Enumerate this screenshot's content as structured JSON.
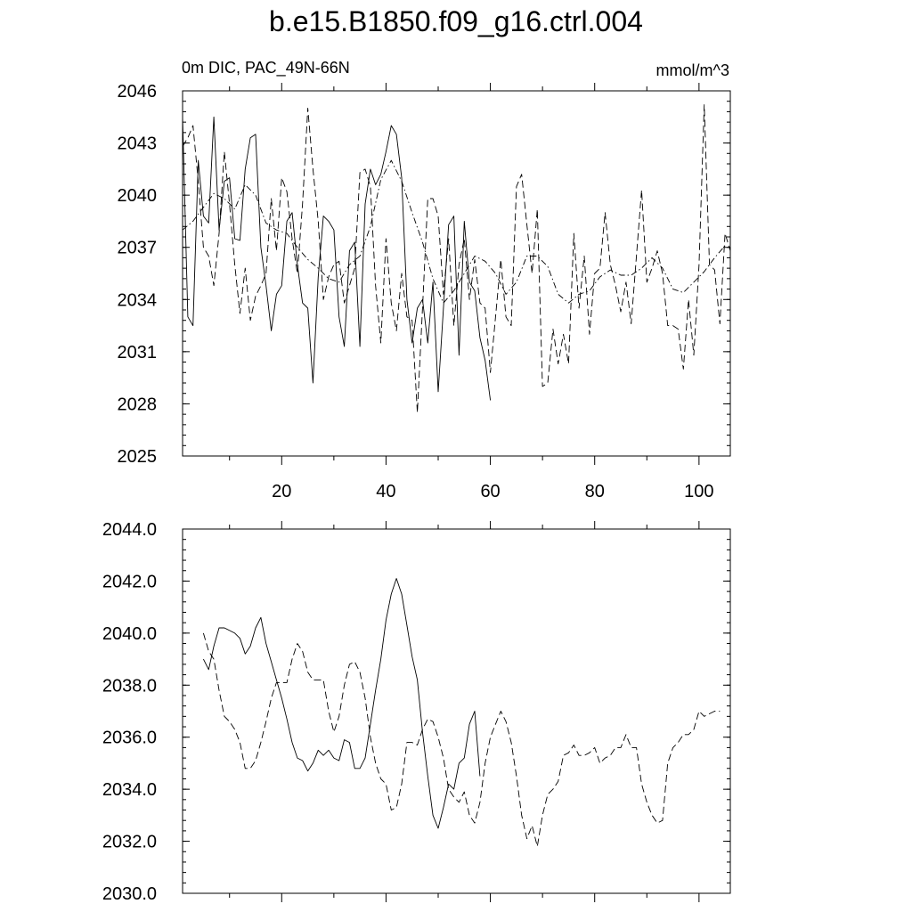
{
  "title": "b.e15.B1850.f09_g16.ctrl.004",
  "left_label": "0m DIC, PAC_49N-66N",
  "right_label": "mmol/m^3",
  "colors": {
    "line": "#000000",
    "background": "#ffffff"
  },
  "chart_data": [
    {
      "type": "line",
      "xlim": [
        1,
        106
      ],
      "ylim": [
        2025,
        2046
      ],
      "yticks": [
        2025,
        2028,
        2031,
        2034,
        2037,
        2040,
        2043,
        2046
      ],
      "ytick_labels": [
        "2025",
        "2028",
        "2031",
        "2034",
        "2037",
        "2040",
        "2043",
        "2046"
      ],
      "xticks": [
        20,
        40,
        60,
        80,
        100
      ],
      "xtick_labels": [
        "20",
        "40",
        "60",
        "80",
        "100"
      ],
      "grid": false,
      "series": [
        {
          "style": "solid",
          "x": [
            1,
            2,
            3,
            4,
            5,
            6,
            7,
            8,
            9,
            10,
            11,
            12,
            13,
            14,
            15,
            16,
            17,
            18,
            19,
            20,
            21,
            22,
            23,
            24,
            25,
            26,
            27,
            28,
            29,
            30,
            31,
            32,
            33,
            34,
            35,
            36,
            37,
            38,
            39,
            40,
            41,
            42,
            43,
            44,
            45,
            46,
            47,
            48,
            49,
            50,
            51,
            52,
            53,
            54,
            55,
            56,
            57,
            58,
            59,
            60
          ],
          "y": [
            2044.5,
            2033.0,
            2032.5,
            2042.0,
            2038.8,
            2038.4,
            2044.5,
            2038.0,
            2040.8,
            2041.0,
            2037.5,
            2037.4,
            2041.5,
            2043.3,
            2043.5,
            2037.0,
            2034.8,
            2032.2,
            2034.3,
            2034.8,
            2038.5,
            2039.0,
            2036.0,
            2033.8,
            2033.5,
            2029.2,
            2035.3,
            2038.8,
            2038.5,
            2038.0,
            2033.0,
            2031.3,
            2036.8,
            2037.3,
            2031.3,
            2039.5,
            2041.5,
            2040.6,
            2041.2,
            2042.5,
            2044.0,
            2043.5,
            2041.0,
            2034.0,
            2031.5,
            2033.5,
            2034.0,
            2031.5,
            2035.0,
            2028.7,
            2033.5,
            2038.3,
            2038.8,
            2030.8,
            2038.5,
            2035.0,
            2034.5,
            2031.8,
            2030.5,
            2028.2
          ]
        },
        {
          "style": "dashed",
          "x": [
            1,
            2,
            3,
            4,
            5,
            6,
            7,
            8,
            9,
            10,
            11,
            12,
            13,
            14,
            15,
            16,
            17,
            18,
            19,
            20,
            21,
            22,
            23,
            24,
            25,
            26,
            27,
            28,
            29,
            30,
            31,
            32,
            33,
            34,
            35,
            36,
            37,
            38,
            39,
            40,
            41,
            42,
            43,
            44,
            45,
            46,
            47,
            48,
            49,
            50,
            51,
            52,
            53,
            54,
            55,
            56,
            57,
            58,
            59,
            60,
            61,
            62,
            63,
            64,
            65,
            66,
            67,
            68,
            69,
            70,
            71,
            72,
            73,
            74,
            75,
            76,
            77,
            78,
            79,
            80,
            81,
            82,
            83,
            84,
            85,
            86,
            87,
            88,
            89,
            90,
            91,
            92,
            93,
            94,
            95,
            96,
            97,
            98,
            99,
            100,
            101,
            102,
            103,
            104,
            105,
            106
          ],
          "y": [
            2042.8,
            2043.3,
            2044.0,
            2040.8,
            2037.0,
            2036.5,
            2034.8,
            2037.8,
            2042.5,
            2039.5,
            2036.0,
            2033.2,
            2035.8,
            2032.8,
            2034.2,
            2034.8,
            2035.5,
            2039.8,
            2036.8,
            2041.0,
            2040.2,
            2037.5,
            2035.5,
            2039.5,
            2045.0,
            2041.5,
            2038.5,
            2034.0,
            2035.3,
            2036.0,
            2036.2,
            2033.8,
            2034.8,
            2035.8,
            2041.3,
            2041.5,
            2040.5,
            2034.8,
            2031.5,
            2037.5,
            2033.8,
            2032.2,
            2035.5,
            2033.0,
            2032.8,
            2027.5,
            2033.5,
            2039.8,
            2039.8,
            2038.8,
            2034.3,
            2037.5,
            2032.5,
            2036.0,
            2037.5,
            2034.0,
            2036.3,
            2033.8,
            2033.5,
            2029.8,
            2033.0,
            2036.3,
            2033.0,
            2032.5,
            2040.5,
            2041.2,
            2038.3,
            2035.5,
            2039.2,
            2029.0,
            2029.2,
            2032.3,
            2030.3,
            2032.0,
            2030.3,
            2037.8,
            2033.5,
            2036.5,
            2032.0,
            2035.5,
            2035.8,
            2039.0,
            2036.0,
            2034.8,
            2033.3,
            2035.0,
            2032.6,
            2036.5,
            2040.3,
            2035.0,
            2035.8,
            2036.8,
            2035.5,
            2032.5,
            2032.5,
            2032.3,
            2030.0,
            2034.0,
            2030.8,
            2036.0,
            2045.2,
            2036.0,
            2035.7,
            2032.6,
            2037.8,
            2036.8
          ]
        },
        {
          "style": "dash-dot",
          "x": [
            1,
            3,
            5,
            7,
            9,
            11,
            13,
            15,
            17,
            19,
            21,
            23,
            25,
            27,
            29,
            31,
            33,
            35,
            37,
            39,
            41,
            43,
            45,
            47,
            49,
            51,
            53,
            55,
            57,
            59,
            61,
            63,
            65,
            67,
            69,
            71,
            73,
            75,
            77,
            79,
            81,
            83,
            85,
            87,
            89,
            91,
            93,
            95,
            97,
            99,
            101,
            103,
            105
          ],
          "y": [
            2038.0,
            2038.5,
            2039.3,
            2040.1,
            2039.8,
            2039.2,
            2040.6,
            2040.0,
            2038.4,
            2038.0,
            2037.8,
            2037.0,
            2036.3,
            2035.8,
            2035.2,
            2035.0,
            2036.0,
            2036.5,
            2038.2,
            2040.9,
            2042.0,
            2040.8,
            2039.0,
            2037.3,
            2035.2,
            2033.8,
            2034.5,
            2035.5,
            2036.5,
            2036.2,
            2035.5,
            2034.3,
            2035.0,
            2036.5,
            2036.5,
            2035.9,
            2034.3,
            2033.8,
            2034.3,
            2034.5,
            2035.3,
            2035.7,
            2035.4,
            2035.4,
            2035.8,
            2036.4,
            2035.8,
            2034.6,
            2034.4,
            2035.0,
            2035.6,
            2036.4,
            2037.1
          ]
        }
      ]
    },
    {
      "type": "line",
      "xlim": [
        1,
        106
      ],
      "ylim": [
        2030.0,
        2044.0
      ],
      "yticks": [
        2030.0,
        2032.0,
        2034.0,
        2036.0,
        2038.0,
        2040.0,
        2042.0,
        2044.0
      ],
      "ytick_labels": [
        "2030.0",
        "2032.0",
        "2034.0",
        "2036.0",
        "2038.0",
        "2040.0",
        "2042.0",
        "2044.0"
      ],
      "xticks": [
        20,
        40,
        60,
        80,
        100
      ],
      "grid": false,
      "series": [
        {
          "style": "solid",
          "x": [
            5,
            6,
            7,
            8,
            9,
            10,
            11,
            12,
            13,
            14,
            15,
            16,
            17,
            18,
            19,
            20,
            21,
            22,
            23,
            24,
            25,
            26,
            27,
            28,
            29,
            30,
            31,
            32,
            33,
            34,
            35,
            36,
            37,
            38,
            39,
            40,
            41,
            42,
            43,
            44,
            45,
            46,
            47,
            48,
            49,
            50,
            51,
            52,
            53,
            54,
            55,
            56,
            57,
            58
          ],
          "y": [
            2039.0,
            2038.6,
            2039.5,
            2040.2,
            2040.2,
            2040.1,
            2040.0,
            2039.8,
            2039.2,
            2039.5,
            2040.2,
            2040.6,
            2039.6,
            2038.9,
            2038.2,
            2037.5,
            2036.7,
            2035.8,
            2035.2,
            2035.1,
            2034.7,
            2035.0,
            2035.5,
            2035.3,
            2035.5,
            2035.2,
            2035.1,
            2035.9,
            2035.8,
            2034.8,
            2034.8,
            2035.2,
            2036.5,
            2037.8,
            2039.0,
            2040.5,
            2041.5,
            2042.1,
            2041.5,
            2040.3,
            2039.1,
            2038.2,
            2036.2,
            2034.5,
            2033.0,
            2032.5,
            2033.3,
            2034.2,
            2034.0,
            2035.0,
            2035.2,
            2036.5,
            2037.0,
            2034.5
          ]
        },
        {
          "style": "dashed",
          "x": [
            5,
            6,
            7,
            8,
            9,
            10,
            11,
            12,
            13,
            14,
            15,
            16,
            17,
            18,
            19,
            20,
            21,
            22,
            23,
            24,
            25,
            26,
            27,
            28,
            29,
            30,
            31,
            32,
            33,
            34,
            35,
            36,
            37,
            38,
            39,
            40,
            41,
            42,
            43,
            44,
            45,
            46,
            47,
            48,
            49,
            50,
            51,
            52,
            53,
            54,
            55,
            56,
            57,
            58,
            59,
            60,
            61,
            62,
            63,
            64,
            65,
            66,
            67,
            68,
            69,
            70,
            71,
            72,
            73,
            74,
            75,
            76,
            77,
            78,
            79,
            80,
            81,
            82,
            83,
            84,
            85,
            86,
            87,
            88,
            89,
            90,
            91,
            92,
            93,
            94,
            95,
            96,
            97,
            98,
            99,
            100,
            101,
            102,
            103,
            104
          ],
          "y": [
            2040.0,
            2039.3,
            2039.0,
            2037.8,
            2036.8,
            2036.6,
            2036.3,
            2035.8,
            2034.8,
            2034.8,
            2035.1,
            2035.8,
            2036.6,
            2037.5,
            2038.1,
            2038.1,
            2038.1,
            2039.0,
            2039.6,
            2039.3,
            2038.5,
            2038.2,
            2038.2,
            2038.2,
            2037.0,
            2036.2,
            2036.8,
            2038.0,
            2038.8,
            2038.9,
            2038.5,
            2037.5,
            2036.0,
            2035.0,
            2034.4,
            2034.2,
            2033.2,
            2033.3,
            2034.2,
            2035.8,
            2035.8,
            2035.7,
            2036.3,
            2036.7,
            2036.6,
            2036.0,
            2035.2,
            2034.0,
            2033.7,
            2033.5,
            2033.9,
            2033.0,
            2032.7,
            2033.5,
            2035.0,
            2036.0,
            2036.5,
            2037.0,
            2036.6,
            2035.8,
            2034.5,
            2033.0,
            2032.1,
            2032.6,
            2031.8,
            2033.0,
            2033.8,
            2034.0,
            2034.3,
            2035.3,
            2035.4,
            2035.7,
            2035.3,
            2035.3,
            2035.4,
            2035.6,
            2035.0,
            2035.2,
            2035.3,
            2035.6,
            2035.6,
            2036.1,
            2035.6,
            2035.6,
            2034.2,
            2033.5,
            2033.0,
            2032.7,
            2032.8,
            2035.0,
            2035.6,
            2035.8,
            2036.1,
            2036.1,
            2036.3,
            2037.0,
            2036.8,
            2036.9,
            2037.0,
            2037.0
          ]
        }
      ]
    }
  ]
}
